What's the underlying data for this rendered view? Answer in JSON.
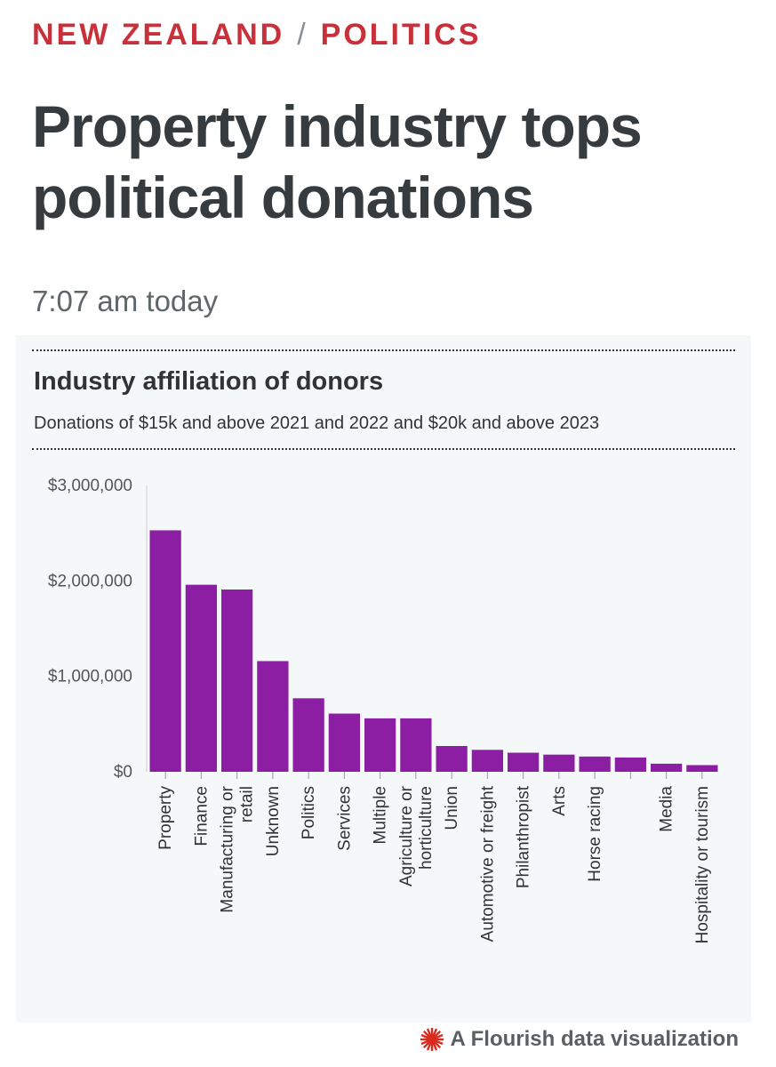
{
  "header": {
    "section": "NEW ZEALAND",
    "separator": "/",
    "category": "POLITICS",
    "headline": "Property industry tops political donations",
    "timestamp": "7:07 am today"
  },
  "colors": {
    "kicker": "#c8303a",
    "bar": "#8c1ea3",
    "card_background": "#f5f8f9"
  },
  "chart_data": {
    "type": "bar",
    "title": "Industry affiliation of donors",
    "subtitle": "Donations of $15k and above 2021 and 2022 and $20k and above 2023",
    "xlabel": "",
    "ylabel": "",
    "ylim": [
      0,
      3000000
    ],
    "yticks": [
      "$0",
      "$1,000,000",
      "$2,000,000",
      "$3,000,000"
    ],
    "grid": false,
    "categories": [
      [
        "Property"
      ],
      [
        "Finance"
      ],
      [
        "Manufacturing or",
        "retail"
      ],
      [
        "Unknown"
      ],
      [
        "Politics"
      ],
      [
        "Services"
      ],
      [
        "Multiple"
      ],
      [
        "Agriculture or",
        "horticulture"
      ],
      [
        "Union"
      ],
      [
        "Automotive or freight"
      ],
      [
        "Philanthropist"
      ],
      [
        "Arts"
      ],
      [
        "Horse racing"
      ],
      [
        ""
      ],
      [
        "Media"
      ],
      [
        "Hospitality or tourism"
      ]
    ],
    "values": [
      2530000,
      1960000,
      1910000,
      1160000,
      770000,
      610000,
      560000,
      560000,
      270000,
      230000,
      200000,
      180000,
      160000,
      150000,
      85000,
      70000
    ]
  },
  "footer": {
    "credit": "A Flourish data visualization",
    "icon": "flourish-star-icon"
  }
}
